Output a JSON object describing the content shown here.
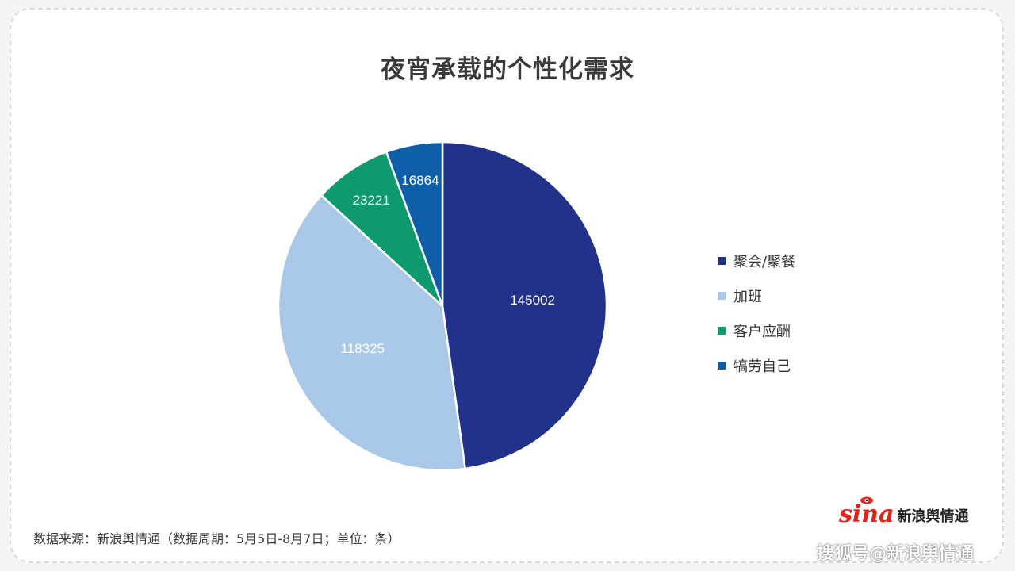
{
  "title": "夜宵承载的个性化需求",
  "source_note": "数据来源：新浪舆情通（数据周期：5月5日-8月7日；单位：条）",
  "brand": {
    "logo_text": "sina",
    "name": "新浪舆情通"
  },
  "watermark": "搜狐号@新浪舆情通",
  "chart_data": {
    "type": "pie",
    "title": "夜宵承载的个性化需求",
    "legend_position": "right",
    "slices": [
      {
        "label": "聚会/聚餐",
        "value": 145002,
        "color": "#22318a"
      },
      {
        "label": "加班",
        "value": 118325,
        "color": "#a9c7e7"
      },
      {
        "label": "客户应酬",
        "value": 23221,
        "color": "#0e9a6e"
      },
      {
        "label": "犒劳自己",
        "value": 16864,
        "color": "#0f5fa8"
      }
    ]
  }
}
